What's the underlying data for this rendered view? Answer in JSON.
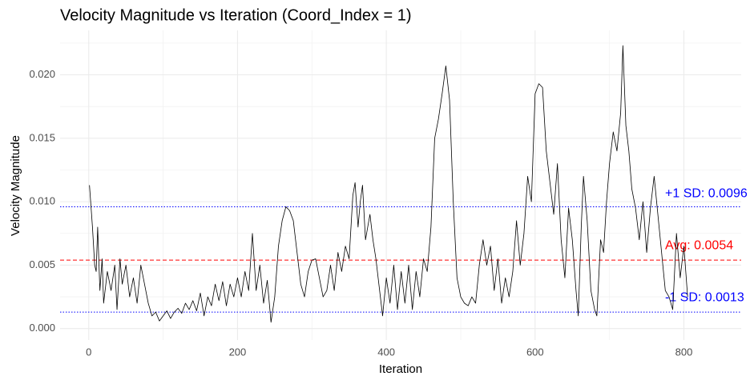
{
  "chart_data": {
    "type": "line",
    "title": "Velocity Magnitude vs Iteration (Coord_Index = 1)",
    "x_label": "Iteration",
    "y_label": "Velocity Magnitude",
    "color": "#000000",
    "x": [
      1,
      5,
      8,
      10,
      12,
      15,
      18,
      20,
      25,
      30,
      35,
      38,
      42,
      45,
      50,
      55,
      60,
      65,
      70,
      75,
      80,
      85,
      90,
      95,
      100,
      105,
      110,
      115,
      120,
      125,
      130,
      135,
      140,
      145,
      150,
      155,
      160,
      165,
      170,
      175,
      180,
      185,
      190,
      195,
      200,
      205,
      210,
      215,
      220,
      225,
      230,
      235,
      240,
      245,
      250,
      255,
      260,
      265,
      270,
      275,
      280,
      285,
      290,
      295,
      300,
      305,
      310,
      315,
      320,
      325,
      330,
      335,
      340,
      345,
      350,
      355,
      358,
      362,
      365,
      368,
      372,
      378,
      382,
      386,
      390,
      395,
      400,
      405,
      410,
      415,
      420,
      425,
      430,
      435,
      440,
      445,
      450,
      455,
      460,
      465,
      470,
      475,
      480,
      485,
      490,
      495,
      500,
      505,
      510,
      515,
      520,
      525,
      530,
      535,
      540,
      545,
      550,
      555,
      560,
      565,
      570,
      575,
      580,
      585,
      590,
      595,
      600,
      605,
      610,
      615,
      620,
      625,
      630,
      635,
      640,
      645,
      650,
      655,
      658,
      662,
      665,
      670,
      675,
      680,
      683,
      688,
      692,
      696,
      700,
      705,
      710,
      715,
      718,
      722,
      726,
      730,
      735,
      740,
      745,
      750,
      755,
      760,
      765,
      770,
      775,
      780,
      785,
      790,
      795,
      800,
      805
    ],
    "values": [
      0.0113,
      0.008,
      0.005,
      0.0045,
      0.008,
      0.003,
      0.0055,
      0.002,
      0.0045,
      0.003,
      0.005,
      0.0015,
      0.0055,
      0.0035,
      0.005,
      0.0025,
      0.004,
      0.002,
      0.005,
      0.0035,
      0.002,
      0.001,
      0.0013,
      0.0006,
      0.001,
      0.0014,
      0.0008,
      0.0013,
      0.0016,
      0.0012,
      0.002,
      0.0015,
      0.0022,
      0.0014,
      0.0028,
      0.001,
      0.0025,
      0.0018,
      0.0035,
      0.0022,
      0.0037,
      0.0018,
      0.0035,
      0.0025,
      0.004,
      0.0025,
      0.0045,
      0.003,
      0.0075,
      0.003,
      0.005,
      0.002,
      0.0038,
      0.0005,
      0.0025,
      0.0065,
      0.0085,
      0.0096,
      0.0093,
      0.0085,
      0.006,
      0.0035,
      0.0025,
      0.0045,
      0.0054,
      0.0055,
      0.004,
      0.0025,
      0.003,
      0.005,
      0.003,
      0.006,
      0.0045,
      0.0065,
      0.0055,
      0.0105,
      0.0115,
      0.008,
      0.01,
      0.0113,
      0.007,
      0.009,
      0.007,
      0.0055,
      0.0035,
      0.001,
      0.004,
      0.002,
      0.005,
      0.0015,
      0.0045,
      0.002,
      0.005,
      0.0015,
      0.0045,
      0.0025,
      0.0055,
      0.0045,
      0.008,
      0.015,
      0.0165,
      0.0185,
      0.0207,
      0.018,
      0.01,
      0.004,
      0.0025,
      0.002,
      0.0018,
      0.0025,
      0.002,
      0.005,
      0.007,
      0.005,
      0.0065,
      0.003,
      0.0055,
      0.002,
      0.004,
      0.0025,
      0.0045,
      0.0085,
      0.005,
      0.0075,
      0.012,
      0.01,
      0.0185,
      0.0193,
      0.019,
      0.014,
      0.0115,
      0.009,
      0.013,
      0.007,
      0.004,
      0.0095,
      0.007,
      0.003,
      0.001,
      0.008,
      0.012,
      0.0085,
      0.003,
      0.0015,
      0.001,
      0.007,
      0.006,
      0.01,
      0.013,
      0.0155,
      0.014,
      0.017,
      0.0223,
      0.016,
      0.014,
      0.011,
      0.0095,
      0.007,
      0.01,
      0.006,
      0.0095,
      0.012,
      0.009,
      0.006,
      0.003,
      0.0025,
      0.0015,
      0.0075,
      0.004,
      0.0065,
      0.0025
    ],
    "xlim": [
      -38.5,
      877
    ],
    "ylim": [
      -0.0009,
      0.0235
    ],
    "xticks": [
      0,
      200,
      400,
      600,
      800
    ],
    "yticks": [
      {
        "value": 0,
        "label": "0.000"
      },
      0.005,
      {
        "value": 0.01,
        "label": "0.010"
      },
      0.015,
      {
        "value": 0.02,
        "label": "0.020"
      }
    ],
    "x_minor_gridlines": [
      100,
      300,
      500,
      700
    ],
    "y_minor_gridlines": [
      0.0025,
      0.0075,
      0.0125,
      0.0175,
      0.0225
    ],
    "grid": true,
    "reference_lines": [
      {
        "label": "+1 SD: 0.0096",
        "value": 0.0096,
        "color": "#0000ff",
        "style": "dotted"
      },
      {
        "label": "Avg: 0.0054",
        "value": 0.0054,
        "color": "#ff0000",
        "style": "dashed"
      },
      {
        "label": "-1 SD: 0.0013",
        "value": 0.0013,
        "color": "#0000ff",
        "style": "dotted"
      }
    ]
  }
}
